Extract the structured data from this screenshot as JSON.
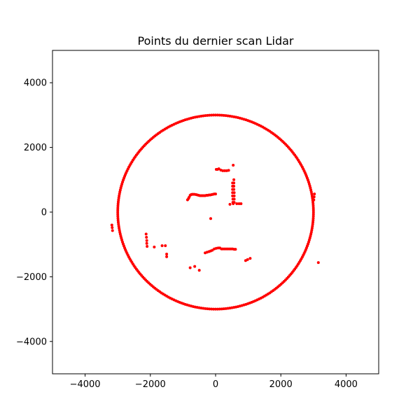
{
  "chart_data": {
    "type": "scatter",
    "title": "Points du dernier scan Lidar",
    "xlabel": "",
    "ylabel": "",
    "xlim": [
      -5000,
      5000
    ],
    "ylim": [
      -5000,
      5000
    ],
    "xticks": [
      -4000,
      -2000,
      0,
      2000,
      4000
    ],
    "yticks": [
      -4000,
      -2000,
      0,
      2000,
      4000
    ],
    "grid": false,
    "legend": "none",
    "marker_color": "#ff0000",
    "ring": {
      "center": [
        0,
        0
      ],
      "radius": 3000,
      "point_count": 300
    },
    "points": [
      [
        -3180,
        -400
      ],
      [
        -3170,
        -480
      ],
      [
        -3160,
        -570
      ],
      [
        -780,
        520
      ],
      [
        -750,
        540
      ],
      [
        -720,
        550
      ],
      [
        -690,
        550
      ],
      [
        -650,
        550
      ],
      [
        -860,
        380
      ],
      [
        -830,
        420
      ],
      [
        -810,
        460
      ],
      [
        -600,
        540
      ],
      [
        -560,
        530
      ],
      [
        -520,
        520
      ],
      [
        -480,
        510
      ],
      [
        -440,
        510
      ],
      [
        -400,
        510
      ],
      [
        -360,
        510
      ],
      [
        -320,
        510
      ],
      [
        -280,
        520
      ],
      [
        -240,
        520
      ],
      [
        -200,
        530
      ],
      [
        -160,
        530
      ],
      [
        -120,
        540
      ],
      [
        -80,
        550
      ],
      [
        -40,
        560
      ],
      [
        0,
        560
      ],
      [
        20,
        1320
      ],
      [
        60,
        1320
      ],
      [
        100,
        1340
      ],
      [
        160,
        1300
      ],
      [
        220,
        1280
      ],
      [
        280,
        1280
      ],
      [
        340,
        1280
      ],
      [
        400,
        1290
      ],
      [
        540,
        1450
      ],
      [
        520,
        900
      ],
      [
        520,
        800
      ],
      [
        520,
        700
      ],
      [
        520,
        600
      ],
      [
        520,
        500
      ],
      [
        530,
        400
      ],
      [
        530,
        300
      ],
      [
        540,
        260
      ],
      [
        560,
        1000
      ],
      [
        560,
        900
      ],
      [
        560,
        800
      ],
      [
        560,
        700
      ],
      [
        570,
        600
      ],
      [
        570,
        500
      ],
      [
        570,
        400
      ],
      [
        570,
        300
      ],
      [
        440,
        240
      ],
      [
        650,
        260
      ],
      [
        720,
        260
      ],
      [
        780,
        260
      ],
      [
        -150,
        -200
      ],
      [
        -2130,
        -680
      ],
      [
        -2120,
        -780
      ],
      [
        -2110,
        -880
      ],
      [
        -2110,
        -970
      ],
      [
        -2100,
        -1060
      ],
      [
        -1880,
        -1080
      ],
      [
        -1640,
        -1040
      ],
      [
        -1540,
        -1040
      ],
      [
        -1500,
        -1300
      ],
      [
        -1500,
        -1380
      ],
      [
        -780,
        -1720
      ],
      [
        -640,
        -1680
      ],
      [
        -500,
        -1800
      ],
      [
        -320,
        -1260
      ],
      [
        -260,
        -1240
      ],
      [
        -200,
        -1220
      ],
      [
        -150,
        -1200
      ],
      [
        -100,
        -1180
      ],
      [
        -40,
        -1140
      ],
      [
        20,
        -1120
      ],
      [
        80,
        -1110
      ],
      [
        130,
        -1110
      ],
      [
        180,
        -1140
      ],
      [
        220,
        -1140
      ],
      [
        270,
        -1140
      ],
      [
        320,
        -1140
      ],
      [
        370,
        -1140
      ],
      [
        420,
        -1140
      ],
      [
        470,
        -1140
      ],
      [
        520,
        -1140
      ],
      [
        570,
        -1150
      ],
      [
        610,
        -1150
      ],
      [
        920,
        -1500
      ],
      [
        980,
        -1470
      ],
      [
        1060,
        -1430
      ],
      [
        3150,
        -1560
      ],
      [
        3030,
        560
      ],
      [
        3020,
        470
      ],
      [
        3010,
        380
      ]
    ]
  }
}
